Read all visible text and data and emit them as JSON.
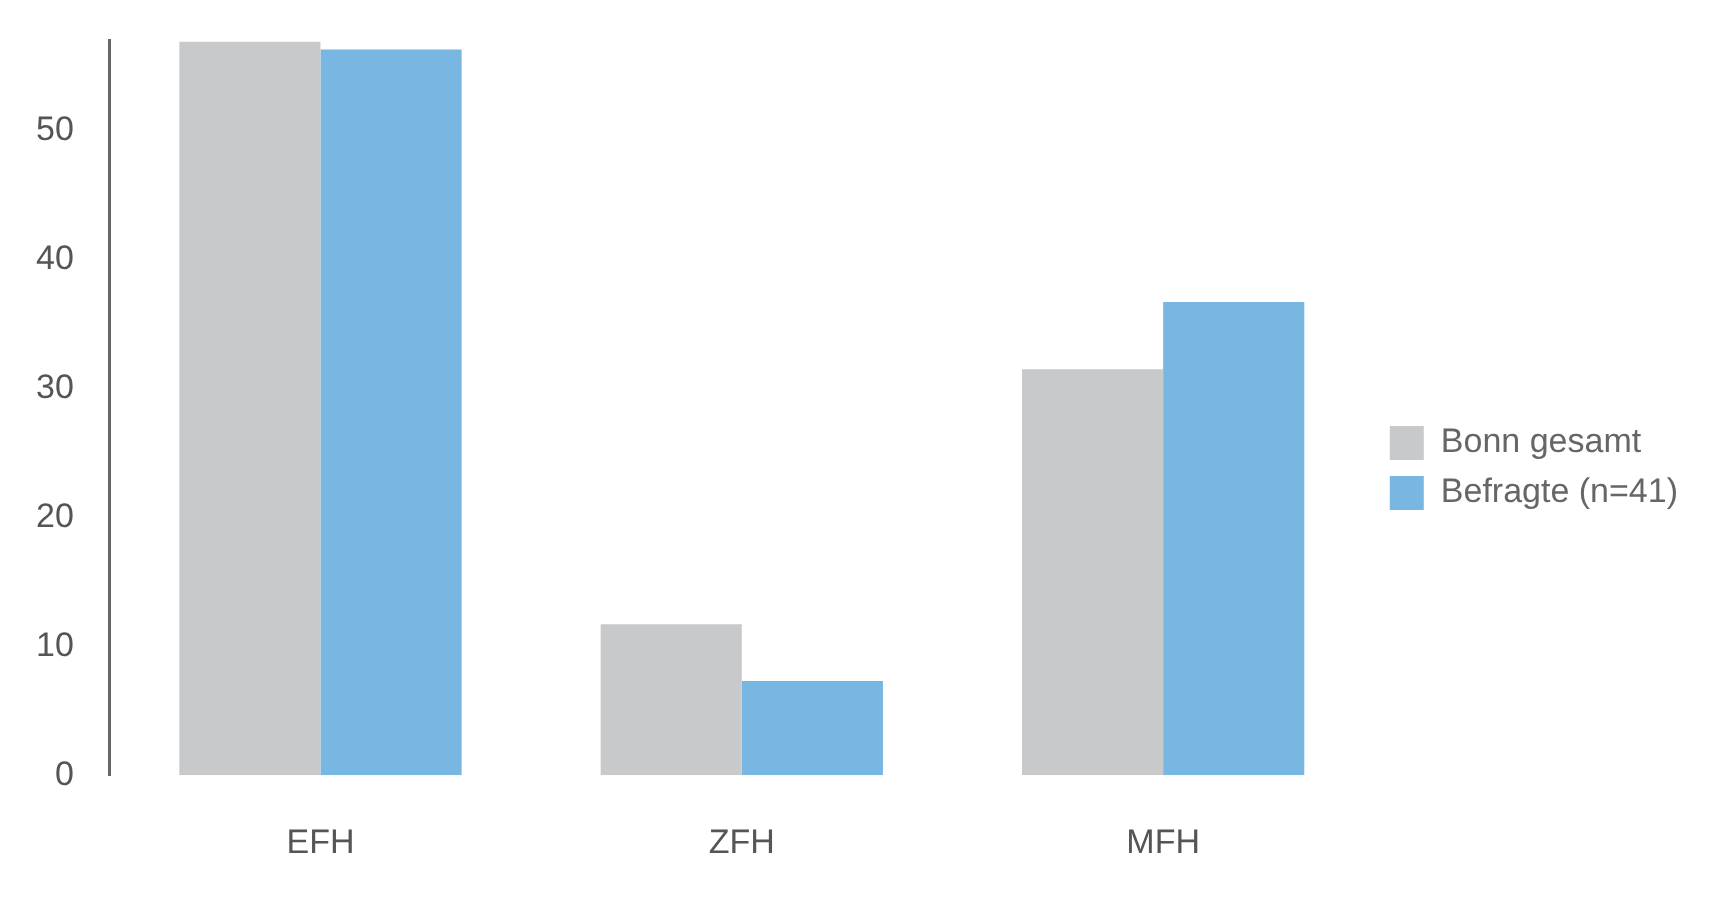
{
  "chart_data": {
    "type": "bar",
    "categories": [
      "EFH",
      "ZFH",
      "MFH"
    ],
    "series": [
      {
        "name": "Bonn gesamt",
        "color": "#c8c9cb",
        "values": [
          56.9,
          11.7,
          31.5
        ]
      },
      {
        "name": "Befragte (n=41)",
        "color": "#77b7e2",
        "values": [
          56.3,
          7.3,
          36.7
        ]
      }
    ],
    "ylim": [
      0,
      57
    ],
    "yticks": [
      0,
      10,
      20,
      30,
      40,
      50
    ],
    "grid": false,
    "legend": "right"
  }
}
